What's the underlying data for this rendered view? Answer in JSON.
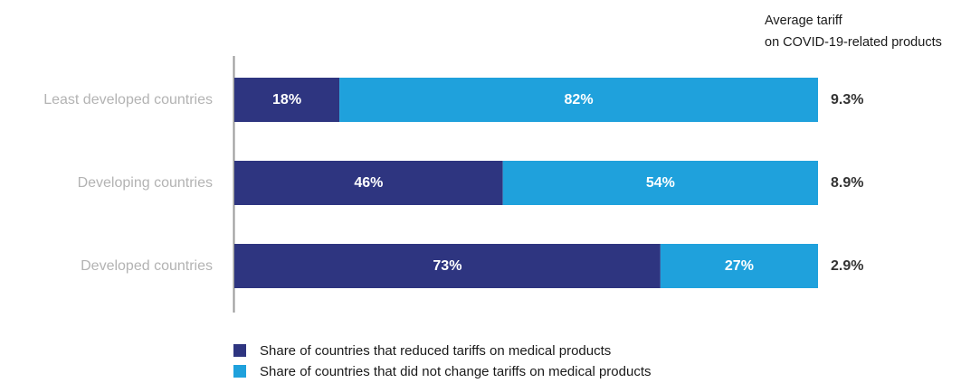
{
  "chart_data": {
    "type": "bar",
    "orientation": "horizontal",
    "stacked": true,
    "percent_stacked": true,
    "categories": [
      "Least developed countries",
      "Developing countries",
      "Developed countries"
    ],
    "series": [
      {
        "name": "Share of countries that reduced tariffs on medical products",
        "values": [
          18,
          46,
          73
        ],
        "labels": [
          "18%",
          "46%",
          "73%"
        ],
        "color": "#2e3580"
      },
      {
        "name": "Share of countries that did not change tariffs on medical products",
        "values": [
          82,
          54,
          27
        ],
        "labels": [
          "82%",
          "54%",
          "27%"
        ],
        "color": "#1fa1dc"
      }
    ],
    "xlim": [
      0,
      100
    ],
    "side_column": {
      "title_line1": "Average tariff",
      "title_line2": "on COVID-19-related products",
      "values": [
        "9.3%",
        "8.9%",
        "2.9%"
      ]
    },
    "legend_position": "bottom",
    "grid": false
  }
}
